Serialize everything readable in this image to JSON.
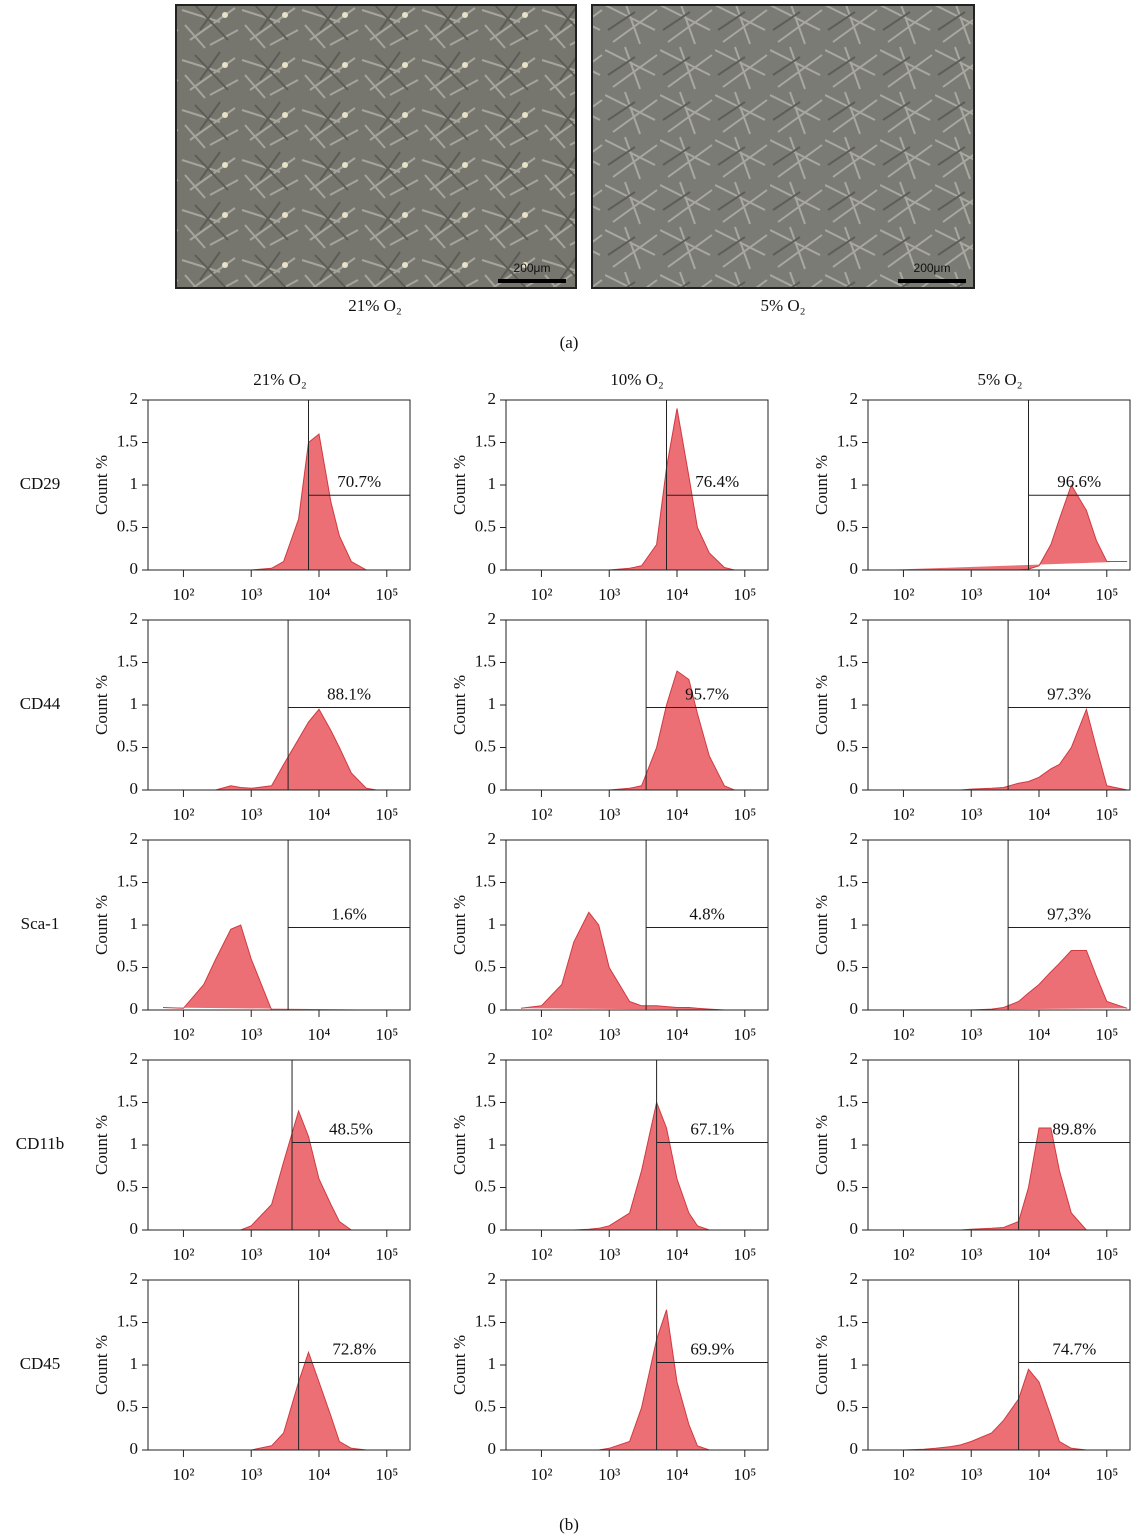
{
  "panel_a": {
    "images": [
      {
        "caption": "21% O₂",
        "scale_bar": "200μm"
      },
      {
        "caption": "5% O₂",
        "scale_bar": "200μm"
      }
    ],
    "label": "(a)"
  },
  "panel_b": {
    "columns": [
      "21% O₂",
      "10% O₂",
      "5% O₂"
    ],
    "rows": [
      "CD29",
      "CD44",
      "Sca-1",
      "CD11b",
      "CD45"
    ],
    "label": "(b)"
  },
  "chart_data": [
    {
      "type": "area",
      "ylabel": "Count %",
      "color": "#e8565c",
      "log_x": true,
      "xlim": [
        30,
        220000
      ],
      "ylim": [
        0,
        2
      ],
      "yticks": [
        0,
        0.5,
        1,
        1.5,
        2
      ],
      "xticks": [
        {
          "value": 100,
          "label": "10²"
        },
        {
          "value": 1000,
          "label": "10³"
        },
        {
          "value": 10000,
          "label": "10⁴"
        },
        {
          "value": 100000,
          "label": "10⁵"
        }
      ],
      "x": [
        50,
        100,
        200,
        300,
        500,
        700,
        1000,
        2000,
        3000,
        5000,
        7000,
        10000,
        15000,
        20000,
        30000,
        50000,
        70000,
        100000,
        200000
      ],
      "values": [
        0,
        0,
        0,
        0,
        0,
        0,
        0,
        0.02,
        0.1,
        0.6,
        1.5,
        1.6,
        0.8,
        0.4,
        0.1,
        0,
        0,
        0,
        0
      ],
      "gate": {
        "x": 7000,
        "y": 0.88,
        "label": "70.7%"
      }
    },
    {
      "type": "area",
      "ylabel": "Count %",
      "color": "#e8565c",
      "log_x": true,
      "xlim": [
        30,
        220000
      ],
      "ylim": [
        0,
        2
      ],
      "yticks": [
        0,
        0.5,
        1,
        1.5,
        2
      ],
      "xticks": [
        {
          "value": 100,
          "label": "10²"
        },
        {
          "value": 1000,
          "label": "10³"
        },
        {
          "value": 10000,
          "label": "10⁴"
        },
        {
          "value": 100000,
          "label": "10⁵"
        }
      ],
      "x": [
        50,
        100,
        200,
        300,
        500,
        700,
        1000,
        2000,
        3000,
        5000,
        7000,
        10000,
        15000,
        20000,
        30000,
        50000,
        70000,
        100000,
        200000
      ],
      "values": [
        0,
        0,
        0,
        0,
        0,
        0,
        0,
        0.02,
        0.05,
        0.3,
        1.2,
        1.9,
        1.1,
        0.5,
        0.2,
        0.03,
        0,
        0,
        0
      ],
      "gate": {
        "x": 7000,
        "y": 0.88,
        "label": "76.4%"
      }
    },
    {
      "type": "area",
      "ylabel": "Count %",
      "color": "#e8565c",
      "log_x": true,
      "xlim": [
        30,
        220000
      ],
      "ylim": [
        0,
        2
      ],
      "yticks": [
        0,
        0.5,
        1,
        1.5,
        2
      ],
      "xticks": [
        {
          "value": 100,
          "label": "10²"
        },
        {
          "value": 1000,
          "label": "10³"
        },
        {
          "value": 10000,
          "label": "10⁴"
        },
        {
          "value": 100000,
          "label": "10⁵"
        }
      ],
      "x": [
        50,
        100,
        200,
        300,
        500,
        700,
        1000,
        2000,
        3000,
        5000,
        7000,
        10000,
        15000,
        20000,
        30000,
        50000,
        70000,
        100000,
        200000
      ],
      "values": [
        0,
        0,
        0,
        0,
        0,
        0,
        0,
        0,
        0,
        0,
        0.01,
        0.05,
        0.3,
        0.6,
        1.0,
        0.7,
        0.35,
        0.1,
        0.1
      ],
      "gate": {
        "x": 7000,
        "y": 0.88,
        "label": "96.6%"
      }
    },
    {
      "type": "area",
      "ylabel": "Count %",
      "color": "#e8565c",
      "log_x": true,
      "xlim": [
        30,
        220000
      ],
      "ylim": [
        0,
        2
      ],
      "yticks": [
        0,
        0.5,
        1,
        1.5,
        2
      ],
      "xticks": [
        {
          "value": 100,
          "label": "10²"
        },
        {
          "value": 1000,
          "label": "10³"
        },
        {
          "value": 10000,
          "label": "10⁴"
        },
        {
          "value": 100000,
          "label": "10⁵"
        }
      ],
      "x": [
        50,
        100,
        200,
        300,
        500,
        700,
        1000,
        2000,
        3000,
        5000,
        7000,
        10000,
        15000,
        20000,
        30000,
        50000,
        70000,
        100000,
        200000
      ],
      "values": [
        0,
        0,
        0,
        0,
        0.05,
        0.03,
        0.02,
        0.05,
        0.3,
        0.6,
        0.8,
        0.95,
        0.7,
        0.5,
        0.2,
        0.02,
        0,
        0,
        0
      ],
      "gate": {
        "x": 3500,
        "y": 0.97,
        "label": "88.1%"
      }
    },
    {
      "type": "area",
      "ylabel": "Count %",
      "color": "#e8565c",
      "log_x": true,
      "xlim": [
        30,
        220000
      ],
      "ylim": [
        0,
        2
      ],
      "yticks": [
        0,
        0.5,
        1,
        1.5,
        2
      ],
      "xticks": [
        {
          "value": 100,
          "label": "10²"
        },
        {
          "value": 1000,
          "label": "10³"
        },
        {
          "value": 10000,
          "label": "10⁴"
        },
        {
          "value": 100000,
          "label": "10⁵"
        }
      ],
      "x": [
        50,
        100,
        200,
        300,
        500,
        700,
        1000,
        2000,
        3000,
        5000,
        7000,
        10000,
        15000,
        20000,
        30000,
        50000,
        70000,
        100000,
        200000
      ],
      "values": [
        0,
        0,
        0,
        0,
        0,
        0,
        0,
        0.02,
        0.05,
        0.5,
        1.0,
        1.4,
        1.3,
        0.9,
        0.4,
        0.05,
        0,
        0,
        0
      ],
      "gate": {
        "x": 3500,
        "y": 0.97,
        "label": "95.7%"
      }
    },
    {
      "type": "area",
      "ylabel": "Count %",
      "color": "#e8565c",
      "log_x": true,
      "xlim": [
        30,
        220000
      ],
      "ylim": [
        0,
        2
      ],
      "yticks": [
        0,
        0.5,
        1,
        1.5,
        2
      ],
      "xticks": [
        {
          "value": 100,
          "label": "10²"
        },
        {
          "value": 1000,
          "label": "10³"
        },
        {
          "value": 10000,
          "label": "10⁴"
        },
        {
          "value": 100000,
          "label": "10⁵"
        }
      ],
      "x": [
        50,
        100,
        200,
        300,
        500,
        700,
        1000,
        2000,
        3000,
        5000,
        7000,
        10000,
        15000,
        20000,
        30000,
        50000,
        70000,
        100000,
        200000
      ],
      "values": [
        0,
        0,
        0,
        0,
        0,
        0,
        0.01,
        0.02,
        0.03,
        0.08,
        0.1,
        0.15,
        0.25,
        0.3,
        0.5,
        0.95,
        0.5,
        0.05,
        0
      ],
      "gate": {
        "x": 3500,
        "y": 0.97,
        "label": "97.3%"
      }
    },
    {
      "type": "area",
      "ylabel": "Count %",
      "color": "#e8565c",
      "log_x": true,
      "xlim": [
        30,
        220000
      ],
      "ylim": [
        0,
        2
      ],
      "yticks": [
        0,
        0.5,
        1,
        1.5,
        2
      ],
      "xticks": [
        {
          "value": 100,
          "label": "10²"
        },
        {
          "value": 1000,
          "label": "10³"
        },
        {
          "value": 10000,
          "label": "10⁴"
        },
        {
          "value": 100000,
          "label": "10⁵"
        }
      ],
      "x": [
        50,
        100,
        200,
        300,
        500,
        700,
        1000,
        2000,
        3000,
        5000,
        7000,
        10000,
        15000,
        20000,
        30000,
        50000,
        70000,
        100000,
        200000
      ],
      "values": [
        0.03,
        0.02,
        0.3,
        0.6,
        0.95,
        1.0,
        0.6,
        0,
        0,
        0,
        0,
        0,
        0,
        0,
        0,
        0,
        0,
        0,
        0
      ],
      "gate": {
        "x": 3500,
        "y": 0.97,
        "label": "1.6%"
      }
    },
    {
      "type": "area",
      "ylabel": "Count %",
      "color": "#e8565c",
      "log_x": true,
      "xlim": [
        30,
        220000
      ],
      "ylim": [
        0,
        2
      ],
      "yticks": [
        0,
        0.5,
        1,
        1.5,
        2
      ],
      "xticks": [
        {
          "value": 100,
          "label": "10²"
        },
        {
          "value": 1000,
          "label": "10³"
        },
        {
          "value": 10000,
          "label": "10⁴"
        },
        {
          "value": 100000,
          "label": "10⁵"
        }
      ],
      "x": [
        50,
        100,
        200,
        300,
        500,
        700,
        1000,
        2000,
        3000,
        5000,
        7000,
        10000,
        15000,
        20000,
        30000,
        50000,
        70000,
        100000,
        200000
      ],
      "values": [
        0.02,
        0.05,
        0.3,
        0.8,
        1.15,
        1.0,
        0.5,
        0.1,
        0.05,
        0.05,
        0.04,
        0.03,
        0.03,
        0.02,
        0.01,
        0,
        0,
        0,
        0
      ],
      "gate": {
        "x": 3500,
        "y": 0.97,
        "label": "4.8%"
      }
    },
    {
      "type": "area",
      "ylabel": "Count %",
      "color": "#e8565c",
      "log_x": true,
      "xlim": [
        30,
        220000
      ],
      "ylim": [
        0,
        2
      ],
      "yticks": [
        0,
        0.5,
        1,
        1.5,
        2
      ],
      "xticks": [
        {
          "value": 100,
          "label": "10²"
        },
        {
          "value": 1000,
          "label": "10³"
        },
        {
          "value": 10000,
          "label": "10⁴"
        },
        {
          "value": 100000,
          "label": "10⁵"
        }
      ],
      "x": [
        50,
        100,
        200,
        300,
        500,
        700,
        1000,
        2000,
        3000,
        5000,
        7000,
        10000,
        15000,
        20000,
        30000,
        50000,
        70000,
        100000,
        200000
      ],
      "values": [
        0,
        0,
        0,
        0,
        0,
        0,
        0,
        0.01,
        0.03,
        0.1,
        0.2,
        0.3,
        0.45,
        0.55,
        0.7,
        0.7,
        0.4,
        0.1,
        0.02
      ],
      "gate": {
        "x": 3500,
        "y": 0.97,
        "label": "97,3%"
      }
    },
    {
      "type": "area",
      "ylabel": "Count %",
      "color": "#e8565c",
      "log_x": true,
      "xlim": [
        30,
        220000
      ],
      "ylim": [
        0,
        2
      ],
      "yticks": [
        0,
        0.5,
        1,
        1.5,
        2
      ],
      "xticks": [
        {
          "value": 100,
          "label": "10²"
        },
        {
          "value": 1000,
          "label": "10³"
        },
        {
          "value": 10000,
          "label": "10⁴"
        },
        {
          "value": 100000,
          "label": "10⁵"
        }
      ],
      "x": [
        50,
        100,
        200,
        300,
        500,
        700,
        1000,
        2000,
        3000,
        5000,
        7000,
        10000,
        15000,
        20000,
        30000,
        50000,
        70000,
        100000,
        200000
      ],
      "values": [
        0,
        0,
        0,
        0,
        0,
        0,
        0.05,
        0.3,
        0.8,
        1.4,
        1.1,
        0.6,
        0.3,
        0.1,
        0,
        0,
        0,
        0,
        0
      ],
      "gate": {
        "x": 4000,
        "y": 1.03,
        "label": "48.5%"
      }
    },
    {
      "type": "area",
      "ylabel": "Count %",
      "color": "#e8565c",
      "log_x": true,
      "xlim": [
        30,
        220000
      ],
      "ylim": [
        0,
        2
      ],
      "yticks": [
        0,
        0.5,
        1,
        1.5,
        2
      ],
      "xticks": [
        {
          "value": 100,
          "label": "10²"
        },
        {
          "value": 1000,
          "label": "10³"
        },
        {
          "value": 10000,
          "label": "10⁴"
        },
        {
          "value": 100000,
          "label": "10⁵"
        }
      ],
      "x": [
        50,
        100,
        200,
        300,
        500,
        700,
        1000,
        2000,
        3000,
        5000,
        7000,
        10000,
        15000,
        20000,
        30000,
        50000,
        70000,
        100000,
        200000
      ],
      "values": [
        0,
        0,
        0,
        0,
        0.01,
        0.02,
        0.05,
        0.2,
        0.7,
        1.5,
        1.2,
        0.6,
        0.2,
        0.05,
        0,
        0,
        0,
        0,
        0
      ],
      "gate": {
        "x": 5000,
        "y": 1.03,
        "label": "67.1%"
      }
    },
    {
      "type": "area",
      "ylabel": "Count %",
      "color": "#e8565c",
      "log_x": true,
      "xlim": [
        30,
        220000
      ],
      "ylim": [
        0,
        2
      ],
      "yticks": [
        0,
        0.5,
        1,
        1.5,
        2
      ],
      "xticks": [
        {
          "value": 100,
          "label": "10²"
        },
        {
          "value": 1000,
          "label": "10³"
        },
        {
          "value": 10000,
          "label": "10⁴"
        },
        {
          "value": 100000,
          "label": "10⁵"
        }
      ],
      "x": [
        50,
        100,
        200,
        300,
        500,
        700,
        1000,
        2000,
        3000,
        5000,
        7000,
        10000,
        15000,
        20000,
        30000,
        50000,
        70000,
        100000,
        200000
      ],
      "values": [
        0,
        0,
        0,
        0,
        0,
        0,
        0.01,
        0.02,
        0.03,
        0.1,
        0.5,
        1.2,
        1.2,
        0.7,
        0.2,
        0,
        0,
        0,
        0
      ],
      "gate": {
        "x": 5000,
        "y": 1.03,
        "label": "89.8%"
      }
    },
    {
      "type": "area",
      "ylabel": "Count %",
      "color": "#e8565c",
      "log_x": true,
      "xlim": [
        30,
        220000
      ],
      "ylim": [
        0,
        2
      ],
      "yticks": [
        0,
        0.5,
        1,
        1.5,
        2
      ],
      "xticks": [
        {
          "value": 100,
          "label": "10²"
        },
        {
          "value": 1000,
          "label": "10³"
        },
        {
          "value": 10000,
          "label": "10⁴"
        },
        {
          "value": 100000,
          "label": "10⁵"
        }
      ],
      "x": [
        50,
        100,
        200,
        300,
        500,
        700,
        1000,
        2000,
        3000,
        5000,
        7000,
        10000,
        15000,
        20000,
        30000,
        50000,
        70000,
        100000,
        200000
      ],
      "values": [
        0,
        0,
        0,
        0,
        0,
        0,
        0,
        0.05,
        0.2,
        0.8,
        1.15,
        0.8,
        0.4,
        0.1,
        0.02,
        0,
        0,
        0,
        0
      ],
      "gate": {
        "x": 5000,
        "y": 1.03,
        "label": "72.8%"
      }
    },
    {
      "type": "area",
      "ylabel": "Count %",
      "color": "#e8565c",
      "log_x": true,
      "xlim": [
        30,
        220000
      ],
      "ylim": [
        0,
        2
      ],
      "yticks": [
        0,
        0.5,
        1,
        1.5,
        2
      ],
      "xticks": [
        {
          "value": 100,
          "label": "10²"
        },
        {
          "value": 1000,
          "label": "10³"
        },
        {
          "value": 10000,
          "label": "10⁴"
        },
        {
          "value": 100000,
          "label": "10⁵"
        }
      ],
      "x": [
        50,
        100,
        200,
        300,
        500,
        700,
        1000,
        2000,
        3000,
        5000,
        7000,
        10000,
        15000,
        20000,
        30000,
        50000,
        70000,
        100000,
        200000
      ],
      "values": [
        0,
        0,
        0,
        0,
        0,
        0,
        0.02,
        0.1,
        0.5,
        1.3,
        1.65,
        0.8,
        0.3,
        0.05,
        0,
        0,
        0,
        0,
        0
      ],
      "gate": {
        "x": 5000,
        "y": 1.03,
        "label": "69.9%"
      }
    },
    {
      "type": "area",
      "ylabel": "Count %",
      "color": "#e8565c",
      "log_x": true,
      "xlim": [
        30,
        220000
      ],
      "ylim": [
        0,
        2
      ],
      "yticks": [
        0,
        0.5,
        1,
        1.5,
        2
      ],
      "xticks": [
        {
          "value": 100,
          "label": "10²"
        },
        {
          "value": 1000,
          "label": "10³"
        },
        {
          "value": 10000,
          "label": "10⁴"
        },
        {
          "value": 100000,
          "label": "10⁵"
        }
      ],
      "x": [
        50,
        100,
        200,
        300,
        500,
        700,
        1000,
        2000,
        3000,
        5000,
        7000,
        10000,
        15000,
        20000,
        30000,
        50000,
        70000,
        100000,
        200000
      ],
      "values": [
        0,
        0,
        0.01,
        0.02,
        0.04,
        0.06,
        0.1,
        0.2,
        0.35,
        0.6,
        0.95,
        0.8,
        0.4,
        0.1,
        0.02,
        0,
        0,
        0,
        0
      ],
      "gate": {
        "x": 5000,
        "y": 1.03,
        "label": "74.7%"
      }
    }
  ]
}
